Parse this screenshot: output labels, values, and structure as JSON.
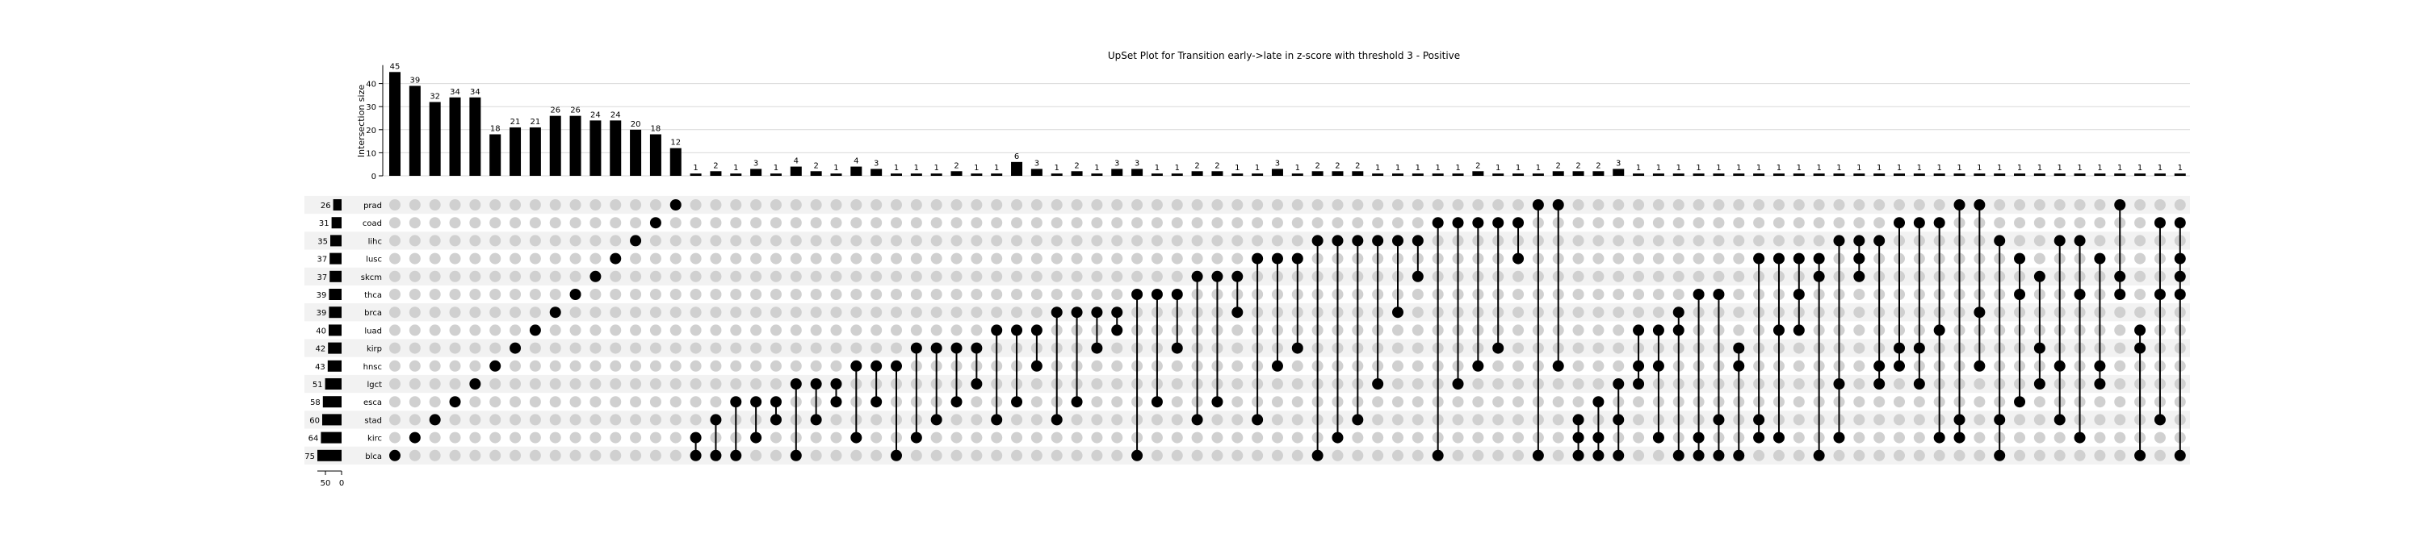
{
  "chart_data": {
    "type": "bar",
    "title": "UpSet Plot for Transition early->late in z-score with threshold 3 - Positive",
    "ylabel": "Intersection size",
    "ylim": [
      0,
      48
    ],
    "yticks": [
      0,
      10,
      20,
      30,
      40
    ],
    "set_size_ticks": [
      50,
      0
    ],
    "sets": [
      {
        "name": "prad",
        "size": 26
      },
      {
        "name": "coad",
        "size": 31
      },
      {
        "name": "lihc",
        "size": 35
      },
      {
        "name": "lusc",
        "size": 37
      },
      {
        "name": "skcm",
        "size": 37
      },
      {
        "name": "thca",
        "size": 39
      },
      {
        "name": "brca",
        "size": 39
      },
      {
        "name": "luad",
        "size": 40
      },
      {
        "name": "kirp",
        "size": 42
      },
      {
        "name": "hnsc",
        "size": 43
      },
      {
        "name": "lgct",
        "size": 51
      },
      {
        "name": "esca",
        "size": 58
      },
      {
        "name": "stad",
        "size": 60
      },
      {
        "name": "kirc",
        "size": 64
      },
      {
        "name": "blca",
        "size": 75
      }
    ],
    "values": [
      45,
      39,
      32,
      34,
      34,
      18,
      21,
      21,
      26,
      26,
      24,
      24,
      20,
      18,
      12,
      1,
      2,
      1,
      3,
      1,
      4,
      2,
      1,
      4,
      3,
      1,
      1,
      1,
      2,
      1,
      1,
      6,
      3,
      1,
      2,
      1,
      3,
      3,
      1,
      1,
      2,
      2,
      1,
      1,
      3,
      1,
      2,
      2,
      2,
      1,
      1,
      1,
      1,
      1,
      2,
      1,
      1,
      1,
      2,
      2,
      2,
      3,
      1,
      1,
      1,
      1,
      1,
      1,
      1,
      1,
      1,
      1,
      1,
      1,
      1,
      1,
      1,
      1,
      1,
      1,
      1,
      1,
      1,
      1,
      1,
      1,
      1,
      1,
      1,
      1
    ],
    "memberships": [
      [
        "blca"
      ],
      [
        "kirc"
      ],
      [
        "stad"
      ],
      [
        "esca"
      ],
      [
        "lgct"
      ],
      [
        "hnsc"
      ],
      [
        "kirp"
      ],
      [
        "luad"
      ],
      [
        "brca"
      ],
      [
        "thca"
      ],
      [
        "skcm"
      ],
      [
        "lusc"
      ],
      [
        "lihc"
      ],
      [
        "coad"
      ],
      [
        "prad"
      ],
      [
        "kirc",
        "blca"
      ],
      [
        "stad",
        "blca"
      ],
      [
        "esca",
        "blca"
      ],
      [
        "esca",
        "kirc"
      ],
      [
        "esca",
        "stad"
      ],
      [
        "lgct",
        "blca"
      ],
      [
        "lgct",
        "stad"
      ],
      [
        "lgct",
        "esca"
      ],
      [
        "hnsc",
        "kirc"
      ],
      [
        "hnsc",
        "esca"
      ],
      [
        "hnsc",
        "blca"
      ],
      [
        "kirp",
        "kirc"
      ],
      [
        "kirp",
        "stad"
      ],
      [
        "kirp",
        "esca"
      ],
      [
        "kirp",
        "lgct"
      ],
      [
        "luad",
        "stad"
      ],
      [
        "luad",
        "esca"
      ],
      [
        "luad",
        "hnsc"
      ],
      [
        "brca",
        "stad"
      ],
      [
        "brca",
        "esca"
      ],
      [
        "brca",
        "kirp"
      ],
      [
        "brca",
        "luad"
      ],
      [
        "thca",
        "blca"
      ],
      [
        "thca",
        "esca"
      ],
      [
        "thca",
        "kirp"
      ],
      [
        "skcm",
        "stad"
      ],
      [
        "skcm",
        "esca"
      ],
      [
        "skcm",
        "brca"
      ],
      [
        "lusc",
        "stad"
      ],
      [
        "lusc",
        "hnsc"
      ],
      [
        "lusc",
        "kirp"
      ],
      [
        "lihc",
        "blca"
      ],
      [
        "lihc",
        "kirc"
      ],
      [
        "lihc",
        "stad"
      ],
      [
        "lihc",
        "lgct"
      ],
      [
        "lihc",
        "brca"
      ],
      [
        "lihc",
        "skcm"
      ],
      [
        "coad",
        "blca"
      ],
      [
        "coad",
        "lgct"
      ],
      [
        "coad",
        "hnsc"
      ],
      [
        "coad",
        "kirp"
      ],
      [
        "coad",
        "lusc"
      ],
      [
        "prad",
        "blca"
      ],
      [
        "prad",
        "hnsc"
      ],
      [
        "stad",
        "kirc",
        "blca"
      ],
      [
        "esca",
        "kirc",
        "blca"
      ],
      [
        "lgct",
        "stad",
        "blca"
      ],
      [
        "luad",
        "hnsc",
        "lgct"
      ],
      [
        "luad",
        "hnsc",
        "kirc"
      ],
      [
        "luad",
        "brca",
        "blca"
      ],
      [
        "thca",
        "kirc",
        "blca"
      ],
      [
        "thca",
        "stad",
        "blca"
      ],
      [
        "hnsc",
        "kirp",
        "blca"
      ],
      [
        "lusc",
        "stad",
        "kirc"
      ],
      [
        "lusc",
        "luad",
        "kirc"
      ],
      [
        "lusc",
        "luad",
        "thca"
      ],
      [
        "lusc",
        "skcm",
        "blca"
      ],
      [
        "lihc",
        "lgct",
        "kirc"
      ],
      [
        "lihc",
        "lusc",
        "skcm"
      ],
      [
        "lihc",
        "hnsc",
        "lgct"
      ],
      [
        "coad",
        "hnsc",
        "kirp"
      ],
      [
        "coad",
        "kirp",
        "lgct"
      ],
      [
        "coad",
        "luad",
        "kirc"
      ],
      [
        "prad",
        "stad",
        "kirc"
      ],
      [
        "prad",
        "brca",
        "hnsc"
      ],
      [
        "lihc",
        "stad",
        "blca"
      ],
      [
        "lusc",
        "thca",
        "esca"
      ],
      [
        "skcm",
        "kirp",
        "lgct"
      ],
      [
        "lihc",
        "hnsc",
        "stad"
      ],
      [
        "lihc",
        "thca",
        "kirc"
      ],
      [
        "lusc",
        "hnsc",
        "lgct"
      ],
      [
        "prad",
        "skcm",
        "thca"
      ],
      [
        "kirp",
        "luad",
        "blca"
      ],
      [
        "coad",
        "thca",
        "stad"
      ],
      [
        "coad",
        "lusc",
        "skcm",
        "thca",
        "blca"
      ]
    ]
  }
}
